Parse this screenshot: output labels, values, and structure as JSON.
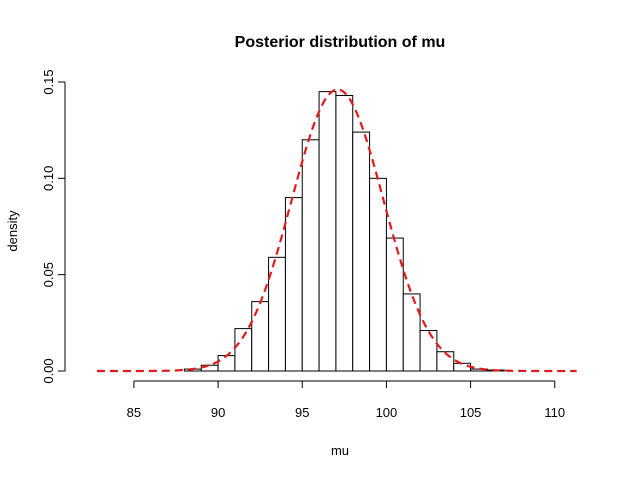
{
  "chart_data": {
    "type": "bar",
    "title": "Posterior distribution of mu",
    "xlabel": "mu",
    "ylabel": "density",
    "xlim": [
      81.5,
      111.5
    ],
    "ylim": [
      0,
      0.15
    ],
    "x_ticks": [
      85,
      90,
      95,
      100,
      105,
      110
    ],
    "y_ticks": [
      "0.00",
      "0.05",
      "0.10",
      "0.15"
    ],
    "bar_edges": [
      88,
      89,
      90,
      91,
      92,
      93,
      94,
      95,
      96,
      97,
      98,
      99,
      100,
      101,
      102,
      103,
      104,
      105,
      106,
      107
    ],
    "bar_values": [
      0.001,
      0.003,
      0.008,
      0.022,
      0.036,
      0.059,
      0.09,
      0.12,
      0.145,
      0.143,
      0.124,
      0.1,
      0.069,
      0.04,
      0.021,
      0.01,
      0.004,
      0.001,
      0.0005
    ],
    "density_curve": {
      "color": "#e31a1c",
      "style": "dashed",
      "mean": 97.1,
      "sd": 2.73,
      "x_range": [
        82.8,
        111.3
      ]
    },
    "grid": false
  }
}
